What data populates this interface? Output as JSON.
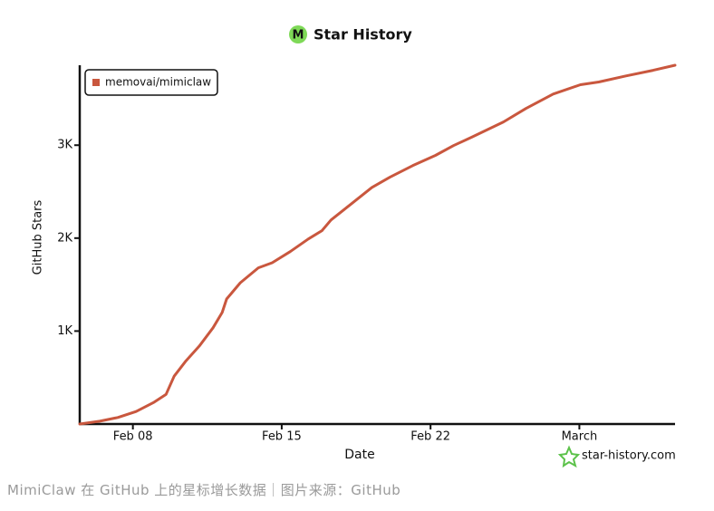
{
  "chart_data": {
    "type": "line",
    "title": "Star History",
    "logo": "M",
    "x_label": "Date",
    "y_label": "GitHub Stars",
    "x": [
      5.5,
      6.44,
      7.29,
      8.15,
      9.0,
      9.56,
      9.94,
      10.5,
      11.13,
      11.77,
      12.2,
      12.41,
      13.05,
      13.9,
      14.55,
      15.4,
      16.25,
      16.89,
      17.32,
      18.17,
      19.24,
      20.09,
      21.16,
      22.23,
      23.08,
      23.93,
      25.43,
      26.49,
      27.77,
      29.05,
      29.91,
      31.19,
      32.47,
      33.5
    ],
    "series": [
      {
        "name": "memovai/mimiclaw",
        "color": "#c9573e",
        "values": [
          0,
          30,
          70,
          135,
          235,
          320,
          515,
          680,
          840,
          1035,
          1200,
          1345,
          1520,
          1680,
          1735,
          1855,
          1990,
          2080,
          2195,
          2350,
          2545,
          2655,
          2780,
          2890,
          2995,
          3085,
          3250,
          3395,
          3550,
          3650,
          3680,
          3745,
          3805,
          3860
        ]
      }
    ],
    "xlim": [
      5.5,
      33.5
    ],
    "xticks": [
      {
        "value": 8,
        "label": "Feb 08"
      },
      {
        "value": 15,
        "label": "Feb 15"
      },
      {
        "value": 22,
        "label": "Feb 22"
      },
      {
        "value": 29,
        "label": "March"
      }
    ],
    "ylim": [
      0,
      3860
    ],
    "yticks": [
      {
        "value": 1000,
        "label": "1K"
      },
      {
        "value": 2000,
        "label": "2K"
      },
      {
        "value": 3000,
        "label": "3K"
      }
    ],
    "grid": false,
    "legend": "upper left",
    "watermark": "star-history.com"
  },
  "caption": "MimiClaw 在 GitHub 上的星标增长数据｜图片来源：GitHub"
}
